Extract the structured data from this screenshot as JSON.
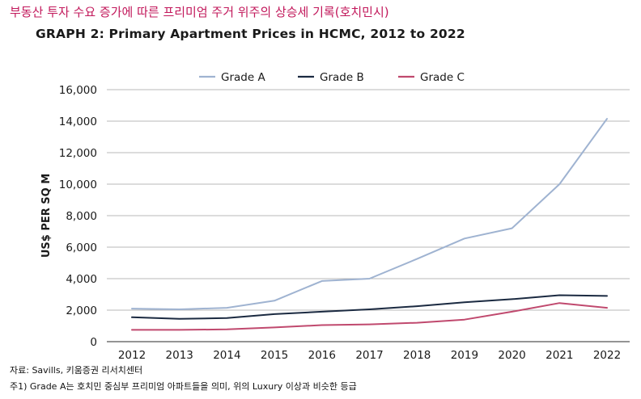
{
  "header": {
    "korean_title": "부동산 투자 수요 증가에 따른 프리미엄 주거 위주의 상승세 기록(호치민시)",
    "graph_title": "GRAPH 2: Primary Apartment Prices in HCMC, 2012 to 2022"
  },
  "footer": {
    "source": "자료: Savills, 키움증권 리서치센터",
    "note": "주1) Grade A는 호치민 중심부 프리미엄 아파트들을 의미, 위의 Luxury 이상과 비슷한 등급"
  },
  "chart_data": {
    "type": "line",
    "title": "GRAPH 2: Primary Apartment Prices in HCMC, 2012 to 2022",
    "xlabel": "",
    "ylabel": "US$ PER SQ M",
    "ylim": [
      0,
      16000
    ],
    "yticks": [
      0,
      2000,
      4000,
      6000,
      8000,
      10000,
      12000,
      14000,
      16000
    ],
    "ytick_labels": [
      "0",
      "2,000",
      "4,000",
      "6,000",
      "8,000",
      "10,000",
      "12,000",
      "14,000",
      "16,000"
    ],
    "categories": [
      "2012",
      "2013",
      "2014",
      "2015",
      "2016",
      "2017",
      "2018",
      "2019",
      "2020",
      "2021",
      "2022"
    ],
    "legend_position": "top-center",
    "grid": true,
    "series": [
      {
        "name": "Grade A",
        "color": "#9fb3d1",
        "values": [
          2100,
          2050,
          2150,
          2600,
          3850,
          4000,
          5250,
          6550,
          7200,
          10000,
          14150
        ]
      },
      {
        "name": "Grade B",
        "color": "#1b2a41",
        "values": [
          1550,
          1450,
          1500,
          1750,
          1900,
          2050,
          2250,
          2500,
          2700,
          2950,
          2900
        ]
      },
      {
        "name": "Grade C",
        "color": "#c0496e",
        "values": [
          750,
          750,
          780,
          900,
          1050,
          1100,
          1200,
          1400,
          1900,
          2450,
          2150
        ]
      }
    ]
  }
}
